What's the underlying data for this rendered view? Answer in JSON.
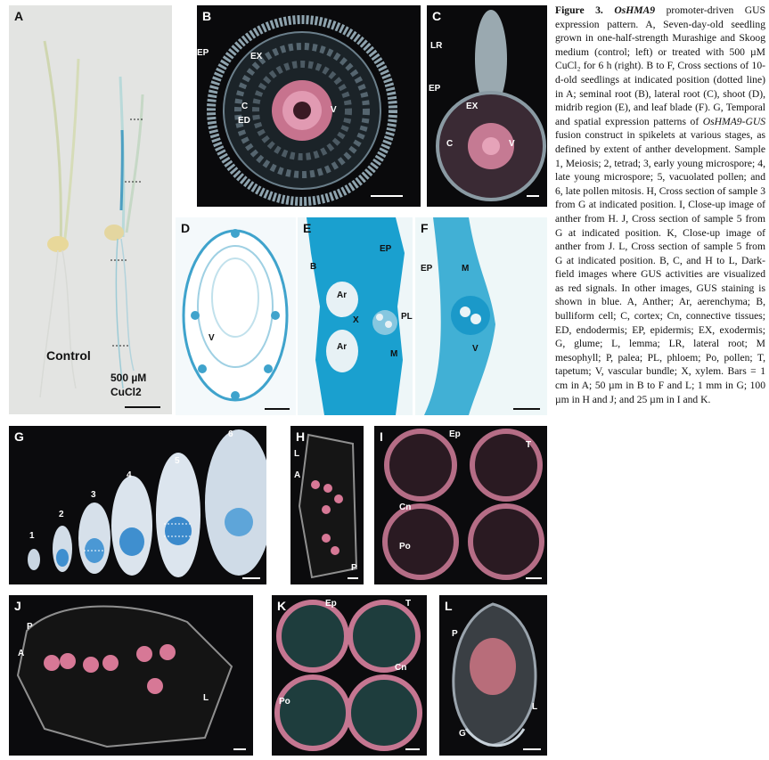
{
  "panels": {
    "A": {
      "letter": "A",
      "control": "Control",
      "treat1": "500 µM",
      "treat2": "CuCl2"
    },
    "B": {
      "letter": "B",
      "labels": [
        "EP",
        "EX",
        "C",
        "ED",
        "V"
      ]
    },
    "C": {
      "letter": "C",
      "labels": [
        "LR",
        "EP",
        "EX",
        "C",
        "V"
      ]
    },
    "D": {
      "letter": "D",
      "labels": [
        "V"
      ]
    },
    "E": {
      "letter": "E",
      "labels": [
        "EP",
        "B",
        "Ar",
        "X",
        "PL",
        "Ar",
        "M"
      ]
    },
    "F": {
      "letter": "F",
      "labels": [
        "EP",
        "M",
        "V"
      ]
    },
    "G": {
      "letter": "G",
      "stages": [
        "1",
        "2",
        "3",
        "4",
        "5",
        "6"
      ]
    },
    "H": {
      "letter": "H",
      "labels": [
        "L",
        "A",
        "P"
      ]
    },
    "I": {
      "letter": "I",
      "labels": [
        "Ep",
        "T",
        "Cn",
        "Po"
      ]
    },
    "J": {
      "letter": "J",
      "labels": [
        "P",
        "A",
        "L"
      ]
    },
    "K": {
      "letter": "K",
      "labels": [
        "Ep",
        "T",
        "Cn",
        "Po"
      ]
    },
    "L": {
      "letter": "L",
      "labels": [
        "P",
        "L",
        "G"
      ]
    }
  },
  "caption": {
    "lead": "Figure 3.",
    "gene": "OsHMA9",
    "text1": "promoter-driven GUS expression pattern. A, Seven-day-old seedling grown in one-half-strength Murashige and Skoog medium (control; left) or treated with 500 µM CuCl₂ for 6 h (right). B to F, Cross sections of 10-d-old seedlings at indicated position (dotted line) in A; seminal root (B), lateral root (C), shoot (D), midrib region (E), and leaf blade (F). G, Temporal and spatial expression patterns of",
    "gene2": "OsHMA9-GUS",
    "text2": "fusion construct in spikelets at various stages, as defined by extent of anther development. Sample 1, Meiosis; 2, tetrad; 3, early young microspore; 4, late young microspore; 5, vacuolated pollen; and 6, late pollen mitosis. H, Cross section of sample 3 from G at indicated position. I, Close-up image of anther from H. J, Cross section of sample 5 from G at indicated position. K, Close-up image of anther from J. L, Cross section of sample 5 from G at indicated position. B, C, and H to L, Dark-field images where GUS activities are visualized as red signals. In other images, GUS staining is shown in blue. A, Anther; Ar, aerenchyma; B, bulliform cell; C, cortex; Cn, connective tissues; ED, endodermis; EP, epidermis; EX, exodermis; G, glume; L, lemma; LR, lateral root; M mesophyll; P, palea; PL, phloem; Po, pollen; T, tapetum; V, vascular bundle; X, xylem. Bars = 1 cm in A; 50 µm in B to F and L; 1 mm in G; 100 µm in H and J; and 25 µm in I and K."
  }
}
